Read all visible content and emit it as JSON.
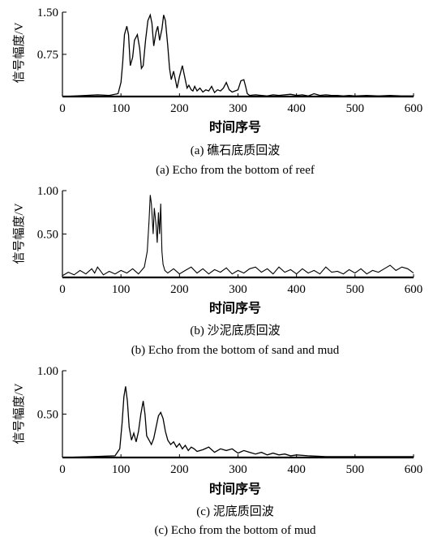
{
  "chart_data": [
    {
      "type": "line",
      "panel_id": "a",
      "ylabel": "信号幅度/V",
      "xlabel": "时间序号",
      "xlim": [
        0,
        600
      ],
      "ylim": [
        0,
        1.5
      ],
      "xticks": [
        "0",
        "100",
        "200",
        "300",
        "400",
        "500",
        "600"
      ],
      "yticks": [
        "0.75",
        "1.50"
      ],
      "caption_cn": "(a) 礁石底质回波",
      "caption_en": "(a) Echo from the bottom of reef",
      "series": [
        {
          "x": [
            0,
            40,
            60,
            80,
            95,
            100,
            103,
            106,
            110,
            113,
            116,
            120,
            123,
            128,
            132,
            135,
            138,
            142,
            146,
            150,
            153,
            156,
            160,
            163,
            166,
            170,
            173,
            176,
            180,
            183,
            186,
            190,
            193,
            196,
            200,
            205,
            210,
            213,
            216,
            220,
            223,
            226,
            230,
            235,
            240,
            245,
            250,
            255,
            260,
            265,
            270,
            275,
            280,
            285,
            290,
            295,
            300,
            305,
            310,
            313,
            316,
            320,
            330,
            340,
            350,
            360,
            370,
            380,
            390,
            400,
            410,
            420,
            430,
            440,
            450,
            460,
            470,
            480,
            490,
            500,
            520,
            540,
            560,
            580,
            600
          ],
          "y": [
            0,
            0.02,
            0.03,
            0.02,
            0.05,
            0.25,
            0.6,
            1.1,
            1.25,
            1.1,
            0.55,
            0.7,
            1.0,
            1.1,
            0.85,
            0.5,
            0.55,
            1.0,
            1.35,
            1.45,
            1.3,
            0.9,
            1.15,
            1.25,
            1.0,
            1.2,
            1.45,
            1.35,
            0.9,
            0.5,
            0.3,
            0.45,
            0.3,
            0.15,
            0.35,
            0.55,
            0.3,
            0.15,
            0.2,
            0.12,
            0.1,
            0.18,
            0.1,
            0.15,
            0.08,
            0.12,
            0.1,
            0.18,
            0.07,
            0.12,
            0.1,
            0.15,
            0.25,
            0.12,
            0.08,
            0.1,
            0.12,
            0.28,
            0.3,
            0.18,
            0.05,
            0.02,
            0.03,
            0.02,
            0.01,
            0.03,
            0.02,
            0.03,
            0.04,
            0.02,
            0.03,
            0.01,
            0.05,
            0.02,
            0.03,
            0.02,
            0.02,
            0.01,
            0.02,
            0.01,
            0.02,
            0.01,
            0.02,
            0.01,
            0.01
          ]
        }
      ]
    },
    {
      "type": "line",
      "panel_id": "b",
      "ylabel": "信号幅度/V",
      "xlabel": "时间序号",
      "xlim": [
        0,
        600
      ],
      "ylim": [
        0,
        1.0
      ],
      "xticks": [
        "0",
        "100",
        "200",
        "300",
        "400",
        "500",
        "600"
      ],
      "yticks": [
        "0.50",
        "1.00"
      ],
      "caption_cn": "(b) 沙泥底质回波",
      "caption_en": "(b) Echo from the bottom of sand and mud",
      "series": [
        {
          "x": [
            0,
            10,
            20,
            30,
            40,
            50,
            55,
            60,
            70,
            80,
            90,
            100,
            110,
            120,
            130,
            140,
            145,
            148,
            150,
            152,
            155,
            157,
            160,
            162,
            164,
            166,
            168,
            170,
            172,
            175,
            180,
            190,
            200,
            210,
            220,
            230,
            240,
            250,
            260,
            270,
            280,
            290,
            300,
            310,
            320,
            330,
            340,
            350,
            360,
            370,
            380,
            390,
            400,
            410,
            420,
            430,
            440,
            450,
            460,
            470,
            480,
            490,
            500,
            510,
            520,
            530,
            540,
            550,
            560,
            570,
            580,
            590,
            600
          ],
          "y": [
            0.02,
            0.06,
            0.03,
            0.08,
            0.04,
            0.1,
            0.05,
            0.12,
            0.03,
            0.07,
            0.04,
            0.08,
            0.05,
            0.1,
            0.04,
            0.12,
            0.3,
            0.65,
            0.95,
            0.85,
            0.5,
            0.8,
            0.6,
            0.4,
            0.75,
            0.5,
            0.85,
            0.3,
            0.15,
            0.08,
            0.05,
            0.1,
            0.04,
            0.08,
            0.12,
            0.05,
            0.1,
            0.04,
            0.09,
            0.06,
            0.11,
            0.04,
            0.08,
            0.05,
            0.1,
            0.12,
            0.06,
            0.1,
            0.04,
            0.12,
            0.06,
            0.09,
            0.04,
            0.1,
            0.05,
            0.08,
            0.04,
            0.12,
            0.06,
            0.07,
            0.04,
            0.09,
            0.05,
            0.1,
            0.04,
            0.08,
            0.06,
            0.1,
            0.14,
            0.08,
            0.12,
            0.1,
            0.05
          ]
        }
      ]
    },
    {
      "type": "line",
      "panel_id": "c",
      "ylabel": "信号幅度/V",
      "xlabel": "时间序号",
      "xlim": [
        0,
        600
      ],
      "ylim": [
        0,
        1.0
      ],
      "xticks": [
        "0",
        "100",
        "200",
        "300",
        "400",
        "500",
        "600"
      ],
      "yticks": [
        "0.50",
        "1.00"
      ],
      "caption_cn": "(c) 泥底质回波",
      "caption_en": "(c) Echo from the bottom of mud",
      "series": [
        {
          "x": [
            0,
            50,
            90,
            98,
            102,
            105,
            108,
            111,
            114,
            118,
            122,
            126,
            130,
            134,
            138,
            141,
            144,
            148,
            152,
            156,
            160,
            164,
            168,
            172,
            176,
            180,
            185,
            190,
            195,
            200,
            205,
            210,
            215,
            220,
            225,
            230,
            240,
            250,
            260,
            270,
            280,
            290,
            300,
            310,
            320,
            330,
            340,
            350,
            360,
            370,
            380,
            390,
            400,
            420,
            450,
            500,
            550,
            600
          ],
          "y": [
            0,
            0.01,
            0.02,
            0.1,
            0.4,
            0.7,
            0.82,
            0.65,
            0.35,
            0.2,
            0.28,
            0.18,
            0.3,
            0.5,
            0.65,
            0.5,
            0.25,
            0.2,
            0.15,
            0.22,
            0.35,
            0.48,
            0.52,
            0.45,
            0.3,
            0.2,
            0.15,
            0.18,
            0.12,
            0.16,
            0.1,
            0.14,
            0.08,
            0.12,
            0.1,
            0.07,
            0.09,
            0.12,
            0.06,
            0.1,
            0.08,
            0.1,
            0.05,
            0.08,
            0.06,
            0.04,
            0.06,
            0.03,
            0.05,
            0.03,
            0.04,
            0.02,
            0.03,
            0.02,
            0.01,
            0.01,
            0.01,
            0.01
          ]
        }
      ]
    }
  ]
}
